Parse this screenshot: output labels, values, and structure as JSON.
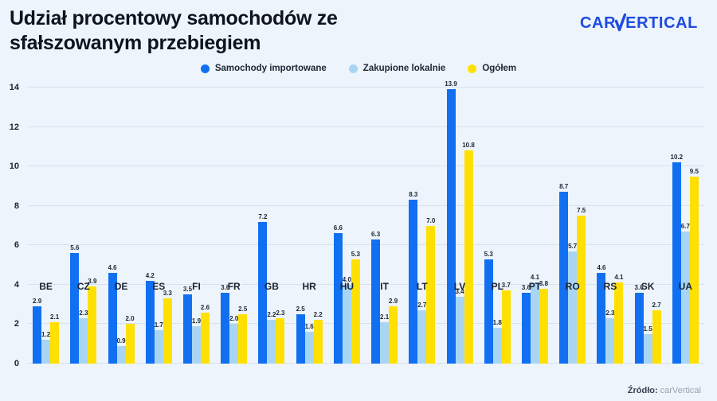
{
  "header": {
    "title_line1": "Udział procentowy samochodów ze",
    "title_line2": "sfałszowanym przebiegiem",
    "logo_prefix": "CAR",
    "logo_suffix": "ERTICAL",
    "logo_color": "#1e4be0"
  },
  "legend": [
    {
      "label": "Samochody importowane",
      "color": "#1170f1"
    },
    {
      "label": "Zakupione lokalnie",
      "color": "#a9d5f5"
    },
    {
      "label": "Ogółem",
      "color": "#ffe000"
    }
  ],
  "chart_data": {
    "type": "bar",
    "title": "Udział procentowy samochodów ze sfałszowanym przebiegiem",
    "categories": [
      "BE",
      "CZ",
      "DE",
      "ES",
      "FI",
      "FR",
      "GB",
      "HR",
      "HU",
      "IT",
      "LT",
      "LV",
      "PL",
      "PT",
      "RO",
      "RS",
      "SK",
      "UA"
    ],
    "series": [
      {
        "name": "Samochody importowane",
        "color": "#1170f1",
        "values": [
          2.9,
          5.6,
          4.6,
          4.2,
          3.5,
          3.6,
          7.2,
          2.5,
          6.6,
          6.3,
          8.3,
          13.9,
          5.3,
          3.6,
          8.7,
          4.6,
          3.6,
          10.2
        ]
      },
      {
        "name": "Zakupione lokalnie",
        "color": "#a9d5f5",
        "values": [
          1.2,
          2.3,
          0.9,
          1.7,
          1.9,
          2.0,
          2.2,
          1.6,
          4.0,
          2.1,
          2.7,
          3.4,
          1.8,
          4.1,
          5.7,
          2.3,
          1.5,
          6.7
        ]
      },
      {
        "name": "Ogółem",
        "color": "#ffe000",
        "values": [
          2.1,
          3.9,
          2.0,
          3.3,
          2.6,
          2.5,
          2.3,
          2.2,
          5.3,
          2.9,
          7.0,
          10.8,
          3.7,
          3.8,
          7.5,
          4.1,
          2.7,
          9.5
        ]
      }
    ],
    "xlabel": "",
    "ylabel": "",
    "ylim": [
      0,
      14
    ],
    "yticks": [
      0,
      2,
      4,
      6,
      8,
      10,
      12,
      14
    ],
    "grid": true,
    "legend_position": "top",
    "value_labels": true
  },
  "footer": {
    "source_label": "Źródło:",
    "source_value": "carVertical"
  },
  "colors": {
    "background": "#edf4fb",
    "gridline": "#d8e2ee",
    "title_text": "#0d1420",
    "axis_text": "#1a2433"
  }
}
